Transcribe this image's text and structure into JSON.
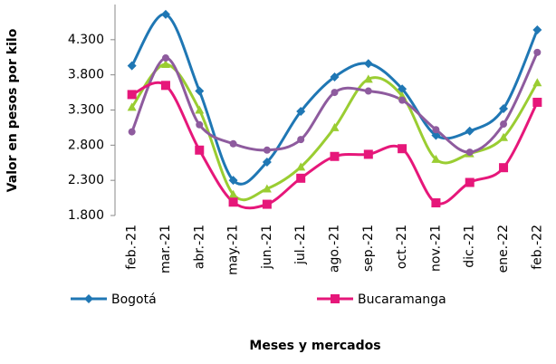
{
  "chart_data": {
    "type": "line",
    "y_label": "Valor en pesos por kilo",
    "x_label": "Meses  y mercados",
    "categories": [
      "feb.-21",
      "mar.-21",
      "abr.-21",
      "may.-21",
      "jun.-21",
      "jul.-21",
      "ago.-21",
      "sep.-21",
      "oct.-21",
      "nov.-21",
      "dic.-21",
      "ene.-22",
      "feb.-22"
    ],
    "series": [
      {
        "name": "Bogotá",
        "color": "#1f77b4",
        "marker": "diamond",
        "values": [
          3930,
          4660,
          3570,
          2300,
          2560,
          3280,
          3770,
          3960,
          3600,
          2940,
          3000,
          3320,
          4440
        ]
      },
      {
        "color": "#9acd32",
        "marker": "triangle",
        "values": [
          3340,
          3950,
          3300,
          2100,
          2180,
          2490,
          3050,
          3740,
          3500,
          2600,
          2680,
          2910,
          3690
        ]
      },
      {
        "color": "#8e5b9e",
        "marker": "circle",
        "values": [
          2990,
          4040,
          3090,
          2820,
          2730,
          2880,
          3550,
          3570,
          3440,
          3020,
          2700,
          3100,
          4120
        ]
      },
      {
        "name": "Bucaramanga",
        "color": "#e6177a",
        "marker": "square",
        "values": [
          3520,
          3650,
          2730,
          1990,
          1960,
          2330,
          2640,
          2670,
          2750,
          1980,
          2270,
          2480,
          3410
        ]
      }
    ],
    "ylim": [
      1800,
      4800
    ],
    "yticks": [
      {
        "value": 1800,
        "label": "1.800"
      },
      {
        "value": 2300,
        "label": "2.300"
      },
      {
        "value": 2800,
        "label": "2.800"
      },
      {
        "value": 3300,
        "label": "3.300"
      },
      {
        "value": 3800,
        "label": "3.800"
      },
      {
        "value": 4300,
        "label": "4.300"
      }
    ],
    "grid": false
  }
}
